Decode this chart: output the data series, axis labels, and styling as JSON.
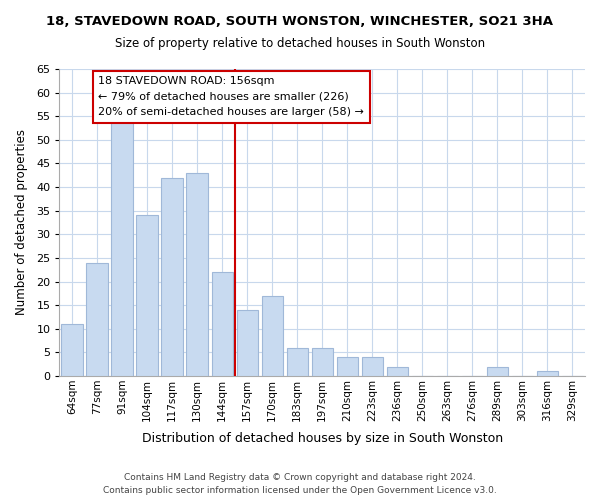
{
  "title": "18, STAVEDOWN ROAD, SOUTH WONSTON, WINCHESTER, SO21 3HA",
  "subtitle": "Size of property relative to detached houses in South Wonston",
  "xlabel": "Distribution of detached houses by size in South Wonston",
  "ylabel": "Number of detached properties",
  "bar_labels": [
    "64sqm",
    "77sqm",
    "91sqm",
    "104sqm",
    "117sqm",
    "130sqm",
    "144sqm",
    "157sqm",
    "170sqm",
    "183sqm",
    "197sqm",
    "210sqm",
    "223sqm",
    "236sqm",
    "250sqm",
    "263sqm",
    "276sqm",
    "289sqm",
    "303sqm",
    "316sqm",
    "329sqm"
  ],
  "bar_values": [
    11,
    24,
    54,
    34,
    42,
    43,
    22,
    14,
    17,
    6,
    6,
    4,
    4,
    2,
    0,
    0,
    0,
    2,
    0,
    1,
    0
  ],
  "bar_color": "#c8daf0",
  "bar_edge_color": "#a0b8d8",
  "ylim": [
    0,
    65
  ],
  "yticks": [
    0,
    5,
    10,
    15,
    20,
    25,
    30,
    35,
    40,
    45,
    50,
    55,
    60,
    65
  ],
  "vline_x": 6.5,
  "vline_color": "#cc0000",
  "annotation_title": "18 STAVEDOWN ROAD: 156sqm",
  "annotation_line1": "← 79% of detached houses are smaller (226)",
  "annotation_line2": "20% of semi-detached houses are larger (58) →",
  "footer_line1": "Contains HM Land Registry data © Crown copyright and database right 2024.",
  "footer_line2": "Contains public sector information licensed under the Open Government Licence v3.0.",
  "background_color": "#ffffff",
  "grid_color": "#c8d8ec"
}
